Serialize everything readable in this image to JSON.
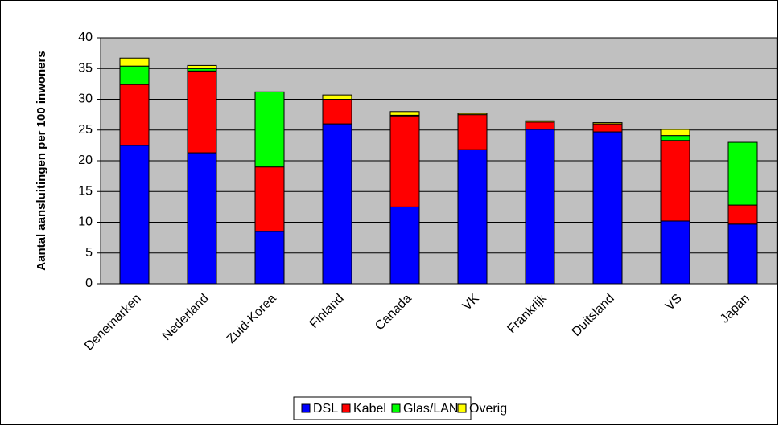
{
  "chart_data": {
    "type": "stacked-bar",
    "y_label": "Aantal aansluitingen per 100 inwoners",
    "categories": [
      "Denemarken",
      "Nederland",
      "Zuid-Korea",
      "Finland",
      "Canada",
      "VK",
      "Frankrijk",
      "Duitsland",
      "VS",
      "Japan"
    ],
    "series": [
      {
        "name": "DSL",
        "color": "#0000ff",
        "values": [
          22.5,
          21.3,
          8.5,
          26.0,
          12.5,
          21.8,
          25.1,
          24.7,
          10.2,
          9.7
        ]
      },
      {
        "name": "Kabel",
        "color": "#ff0000",
        "values": [
          9.9,
          13.3,
          10.5,
          3.9,
          14.8,
          5.7,
          1.2,
          1.3,
          13.1,
          3.1
        ]
      },
      {
        "name": "Glas/LAN",
        "color": "#00ff00",
        "values": [
          3.0,
          0.4,
          12.2,
          0.1,
          0.1,
          0,
          0,
          0,
          0.8,
          10.2
        ]
      },
      {
        "name": "Overig",
        "color": "#ffff00",
        "values": [
          1.3,
          0.5,
          0,
          0.7,
          0.6,
          0.2,
          0.2,
          0.2,
          1.0,
          0
        ]
      }
    ],
    "ylim": [
      0,
      40
    ],
    "yticks": [
      0,
      5,
      10,
      15,
      20,
      25,
      30,
      35,
      40
    ],
    "grid": true,
    "plot_color": "#c0c0c0",
    "legend": "bottom"
  }
}
